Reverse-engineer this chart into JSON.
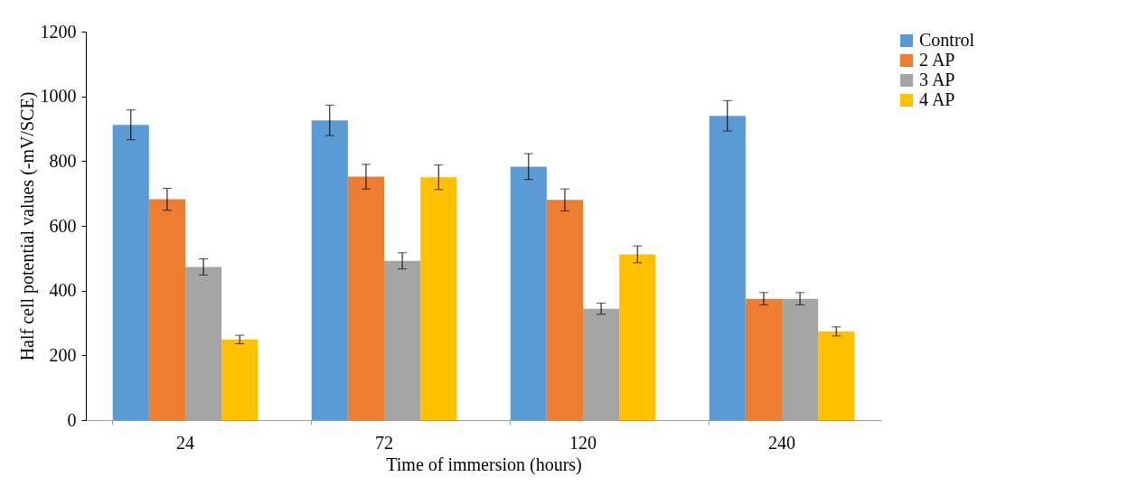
{
  "chart_data": {
    "type": "bar",
    "xlabel": "Time of immersion (hours)",
    "ylabel": "Half cell potential values (-mV/SCE)",
    "categories": [
      "24",
      "72",
      "120",
      "240"
    ],
    "series": [
      {
        "name": "Control",
        "color": "#5b9bd5",
        "values": [
          912,
          926,
          783,
          940
        ],
        "errors": [
          46,
          47,
          40,
          47
        ]
      },
      {
        "name": "2 AP",
        "color": "#ed7d31",
        "values": [
          682,
          752,
          680,
          375
        ],
        "errors": [
          34,
          38,
          34,
          19
        ]
      },
      {
        "name": "3 AP",
        "color": "#a5a5a5",
        "values": [
          473,
          492,
          344,
          375
        ],
        "errors": [
          25,
          25,
          17,
          19
        ]
      },
      {
        "name": "4 AP",
        "color": "#ffc000",
        "values": [
          249,
          750,
          512,
          274
        ],
        "errors": [
          13,
          38,
          26,
          14
        ]
      }
    ],
    "ylim": [
      0,
      1200
    ],
    "yticks": [
      0,
      200,
      400,
      600,
      800,
      1000,
      1200
    ],
    "grid": false,
    "legend": "right"
  }
}
